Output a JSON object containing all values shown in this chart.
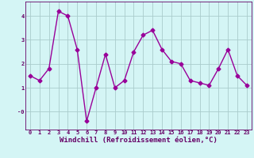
{
  "x": [
    0,
    1,
    2,
    3,
    4,
    5,
    6,
    7,
    8,
    9,
    10,
    11,
    12,
    13,
    14,
    15,
    16,
    17,
    18,
    19,
    20,
    21,
    22,
    23
  ],
  "y": [
    1.5,
    1.3,
    1.8,
    4.2,
    4.0,
    2.6,
    -0.4,
    1.0,
    2.4,
    1.0,
    1.3,
    2.5,
    3.2,
    3.4,
    2.6,
    2.1,
    2.0,
    1.3,
    1.2,
    1.1,
    1.8,
    2.6,
    1.5,
    1.1
  ],
  "line_color": "#990099",
  "marker": "D",
  "markersize": 2.5,
  "linewidth": 1.0,
  "background_color": "#d4f5f5",
  "grid_color": "#aacccc",
  "xlabel": "Windchill (Refroidissement éolien,°C)",
  "xlabel_fontsize": 6.5,
  "xlabel_color": "#660066",
  "tick_color": "#660066",
  "tick_fontsize": 5.0,
  "ylim": [
    -0.75,
    4.6
  ],
  "xlim": [
    -0.5,
    23.5
  ],
  "yticks": [
    0,
    1,
    2,
    3,
    4
  ],
  "ytick_labels": [
    "-0",
    "1",
    "2",
    "3",
    "4"
  ],
  "xticks": [
    0,
    1,
    2,
    3,
    4,
    5,
    6,
    7,
    8,
    9,
    10,
    11,
    12,
    13,
    14,
    15,
    16,
    17,
    18,
    19,
    20,
    21,
    22,
    23
  ]
}
